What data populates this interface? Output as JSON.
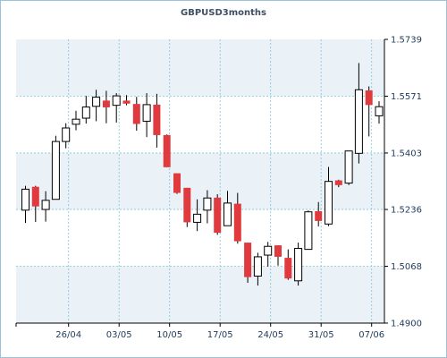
{
  "chart_data": {
    "type": "candlestick",
    "title": "GBPUSD3months",
    "xlabel": "",
    "ylabel": "",
    "ylim": [
      1.49,
      1.5739
    ],
    "y_ticks": [
      "1.5739",
      "1.5571",
      "1.5403",
      "1.5236",
      "1.5068",
      "1.4900"
    ],
    "x_ticks": [
      {
        "label": "26/04",
        "index": 4
      },
      {
        "label": "03/05",
        "index": 9
      },
      {
        "label": "10/05",
        "index": 14
      },
      {
        "label": "17/05",
        "index": 19
      },
      {
        "label": "24/05",
        "index": 24
      },
      {
        "label": "31/05",
        "index": 29
      },
      {
        "label": "07/06",
        "index": 34
      }
    ],
    "grid": true,
    "colors": {
      "up": "#ffffff",
      "down": "#e03a3e",
      "outline": "#000000",
      "grid": "#7fc6d6",
      "plot_bg": "#ffffff",
      "band": "#eaf1f7"
    },
    "candles": [
      {
        "open": 1.5234,
        "high": 1.5306,
        "low": 1.5196,
        "close": 1.5296
      },
      {
        "open": 1.5303,
        "high": 1.5306,
        "low": 1.5199,
        "close": 1.5245
      },
      {
        "open": 1.5236,
        "high": 1.529,
        "low": 1.52,
        "close": 1.5263
      },
      {
        "open": 1.5266,
        "high": 1.5454,
        "low": 1.5266,
        "close": 1.5437
      },
      {
        "open": 1.5437,
        "high": 1.5491,
        "low": 1.5417,
        "close": 1.5477
      },
      {
        "open": 1.5488,
        "high": 1.5528,
        "low": 1.547,
        "close": 1.5503
      },
      {
        "open": 1.5506,
        "high": 1.5572,
        "low": 1.549,
        "close": 1.5539
      },
      {
        "open": 1.5541,
        "high": 1.559,
        "low": 1.5497,
        "close": 1.5568
      },
      {
        "open": 1.5558,
        "high": 1.5587,
        "low": 1.5491,
        "close": 1.5538
      },
      {
        "open": 1.5544,
        "high": 1.558,
        "low": 1.5493,
        "close": 1.5572
      },
      {
        "open": 1.5558,
        "high": 1.5574,
        "low": 1.5544,
        "close": 1.5549
      },
      {
        "open": 1.5548,
        "high": 1.5569,
        "low": 1.5469,
        "close": 1.5489
      },
      {
        "open": 1.5497,
        "high": 1.558,
        "low": 1.545,
        "close": 1.5546
      },
      {
        "open": 1.5546,
        "high": 1.5578,
        "low": 1.5419,
        "close": 1.5456
      },
      {
        "open": 1.5456,
        "high": 1.5458,
        "low": 1.5361,
        "close": 1.5361
      },
      {
        "open": 1.5343,
        "high": 1.5343,
        "low": 1.5282,
        "close": 1.5285
      },
      {
        "open": 1.53,
        "high": 1.53,
        "low": 1.5184,
        "close": 1.5198
      },
      {
        "open": 1.5198,
        "high": 1.5266,
        "low": 1.5172,
        "close": 1.5222
      },
      {
        "open": 1.5234,
        "high": 1.5293,
        "low": 1.5195,
        "close": 1.527
      },
      {
        "open": 1.5271,
        "high": 1.5281,
        "low": 1.5161,
        "close": 1.5167
      },
      {
        "open": 1.5188,
        "high": 1.5291,
        "low": 1.5188,
        "close": 1.5255
      },
      {
        "open": 1.5253,
        "high": 1.5285,
        "low": 1.5135,
        "close": 1.5142
      },
      {
        "open": 1.5138,
        "high": 1.5138,
        "low": 1.5019,
        "close": 1.5036
      },
      {
        "open": 1.5039,
        "high": 1.5108,
        "low": 1.5011,
        "close": 1.5096
      },
      {
        "open": 1.5101,
        "high": 1.514,
        "low": 1.5067,
        "close": 1.5127
      },
      {
        "open": 1.513,
        "high": 1.513,
        "low": 1.507,
        "close": 1.5096
      },
      {
        "open": 1.5093,
        "high": 1.5118,
        "low": 1.5028,
        "close": 1.5032
      },
      {
        "open": 1.5025,
        "high": 1.5138,
        "low": 1.5011,
        "close": 1.5121
      },
      {
        "open": 1.5118,
        "high": 1.5233,
        "low": 1.5118,
        "close": 1.5229
      },
      {
        "open": 1.5231,
        "high": 1.5258,
        "low": 1.5186,
        "close": 1.5202
      },
      {
        "open": 1.5193,
        "high": 1.5362,
        "low": 1.5187,
        "close": 1.5319
      },
      {
        "open": 1.5322,
        "high": 1.5324,
        "low": 1.5302,
        "close": 1.5308
      },
      {
        "open": 1.5314,
        "high": 1.5406,
        "low": 1.5308,
        "close": 1.5409
      },
      {
        "open": 1.5402,
        "high": 1.5669,
        "low": 1.5372,
        "close": 1.559
      },
      {
        "open": 1.5588,
        "high": 1.56,
        "low": 1.5452,
        "close": 1.5545
      },
      {
        "open": 1.5513,
        "high": 1.5556,
        "low": 1.549,
        "close": 1.554
      }
    ]
  }
}
